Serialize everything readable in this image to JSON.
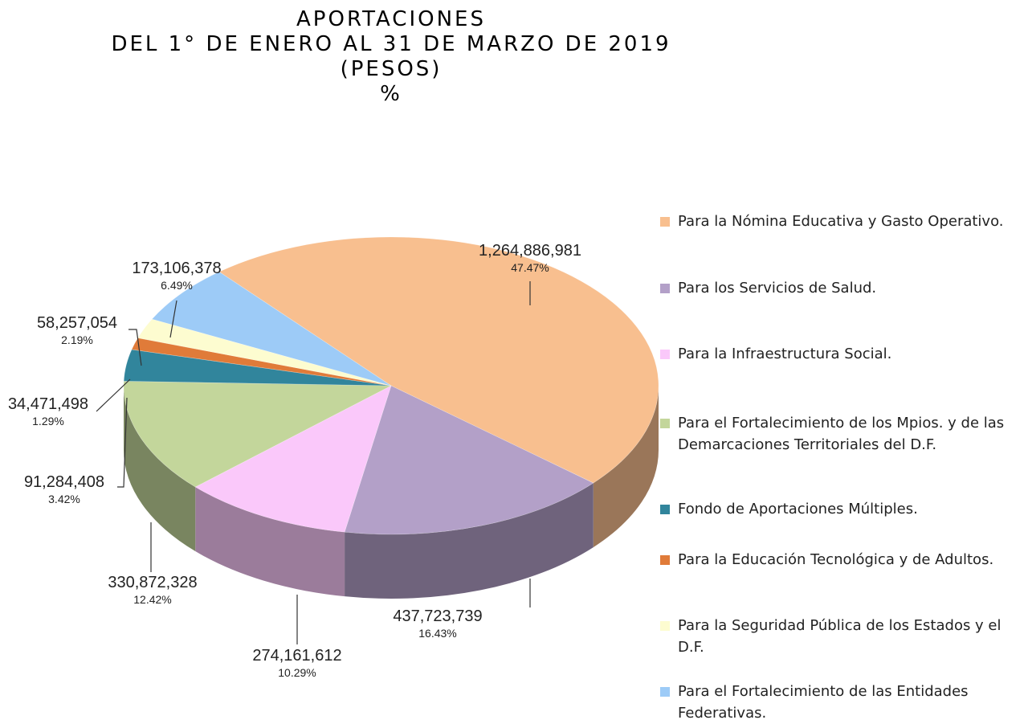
{
  "chart_data": {
    "type": "pie",
    "title": [
      "APORTACIONES",
      "DEL 1° DE ENERO AL 31 DE MARZO DE 2019",
      "(PESOS)",
      "%"
    ],
    "categories": [
      "Para la Nómina Educativa y Gasto Operativo.",
      "Para los Servicios de Salud.",
      "Para la Infraestructura Social.",
      "Para el Fortalecimiento de los Mpios. y de las Demarcaciones Territoriales del D.F.",
      "Fondo de Aportaciones Múltiples.",
      "Para la Educación Tecnológica y de Adultos.",
      "Para la Seguridad Pública de los Estados y el D.F.",
      "Para el Fortalecimiento de las Entidades Federativas."
    ],
    "values": [
      1264886981,
      437723739,
      274161612,
      330872328,
      91284408,
      34471498,
      58257054,
      173106378
    ],
    "value_labels": [
      "1,264,886,981",
      "437,723,739",
      "274,161,612",
      "330,872,328",
      "91,284,408",
      "34,471,498",
      "58,257,054",
      "173,106,378"
    ],
    "percents": [
      47.47,
      16.43,
      10.29,
      12.42,
      3.42,
      1.29,
      2.19,
      6.49
    ],
    "percent_labels": [
      "47.47%",
      "16.43%",
      "10.29%",
      "12.42%",
      "3.42%",
      "1.29%",
      "2.19%",
      "6.49%"
    ],
    "colors": [
      "#f8bf8f",
      "#b3a0c8",
      "#fac8fa",
      "#c3d69b",
      "#31859c",
      "#e07b39",
      "#fdfcd0",
      "#9dcbf7"
    ],
    "legend": "right"
  }
}
